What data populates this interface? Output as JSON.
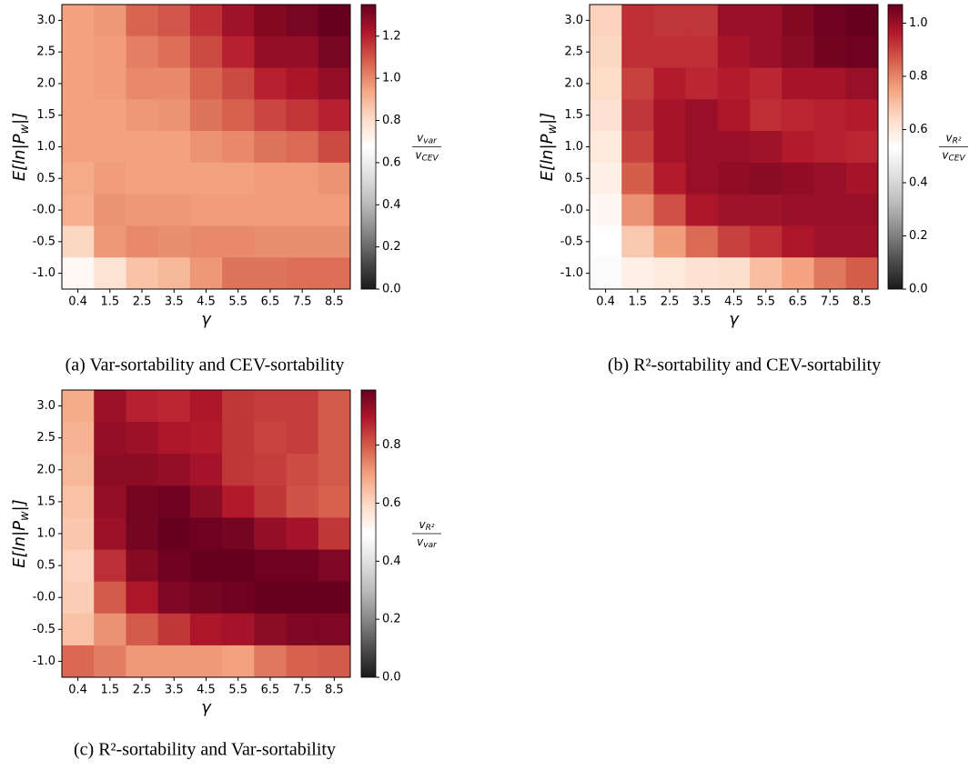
{
  "chart_data": [
    {
      "type": "heatmap",
      "caption": "(a) Var-sortability and CEV-sortability",
      "x_label": "γ",
      "y_label": {
        "main": "E[ln|P",
        "sub": "w",
        "tail": "|]"
      },
      "x_categories": [
        "0.4",
        "1.5",
        "2.5",
        "3.5",
        "4.5",
        "5.5",
        "6.5",
        "7.5",
        "8.5"
      ],
      "y_categories": [
        "3.0",
        "2.5",
        "2.0",
        "1.5",
        "1.0",
        "0.5",
        "-0.0",
        "-0.5",
        "-1.0"
      ],
      "values": [
        [
          0.95,
          0.97,
          1.07,
          1.1,
          1.17,
          1.25,
          1.3,
          1.32,
          1.35
        ],
        [
          0.95,
          0.96,
          1.02,
          1.05,
          1.12,
          1.2,
          1.27,
          1.27,
          1.32
        ],
        [
          0.95,
          0.96,
          1.0,
          1.0,
          1.07,
          1.12,
          1.2,
          1.23,
          1.27
        ],
        [
          0.95,
          0.95,
          0.97,
          0.98,
          1.04,
          1.08,
          1.13,
          1.16,
          1.2
        ],
        [
          0.95,
          0.95,
          0.95,
          0.95,
          0.98,
          1.0,
          1.04,
          1.06,
          1.12
        ],
        [
          0.93,
          0.96,
          0.95,
          0.95,
          0.95,
          0.95,
          0.96,
          0.96,
          0.98
        ],
        [
          0.92,
          0.98,
          0.97,
          0.97,
          0.96,
          0.96,
          0.96,
          0.96,
          0.96
        ],
        [
          0.82,
          0.97,
          1.0,
          0.99,
          1.0,
          1.0,
          0.99,
          0.99,
          0.99
        ],
        [
          0.7,
          0.78,
          0.87,
          0.9,
          0.97,
          1.04,
          1.04,
          1.05,
          1.05
        ]
      ],
      "colormap": "RdGy_r",
      "clim": [
        0,
        1.35
      ],
      "cticks": [
        {
          "value": 0,
          "label": "0.0"
        },
        0.2,
        0.4,
        0.6,
        0.8,
        {
          "value": 1,
          "label": "1.0"
        },
        1.2
      ],
      "colorbar_label": {
        "num": "v",
        "num_sub": "var",
        "den": "v",
        "den_sub": "CEV"
      }
    },
    {
      "type": "heatmap",
      "caption": "(b) R²-sortability and CEV-sortability",
      "x_label": "γ",
      "y_label": {
        "main": "E[ln|P",
        "sub": "w",
        "tail": "|]"
      },
      "x_categories": [
        "0.4",
        "1.5",
        "2.5",
        "3.5",
        "4.5",
        "5.5",
        "6.5",
        "7.5",
        "8.5"
      ],
      "y_categories": [
        "3.0",
        "2.5",
        "2.0",
        "1.5",
        "1.0",
        "0.5",
        "-0.0",
        "-0.5",
        "-1.0"
      ],
      "values": [
        [
          0.66,
          0.93,
          0.92,
          0.92,
          1.0,
          1.0,
          1.03,
          1.06,
          1.07
        ],
        [
          0.65,
          0.93,
          0.93,
          0.93,
          0.98,
          1.0,
          1.02,
          1.05,
          1.06
        ],
        [
          0.64,
          0.9,
          0.96,
          0.94,
          0.96,
          0.94,
          0.98,
          0.98,
          1.0
        ],
        [
          0.62,
          0.92,
          0.98,
          1.0,
          0.97,
          0.93,
          0.94,
          0.95,
          0.96
        ],
        [
          0.6,
          0.9,
          0.98,
          1.0,
          1.0,
          0.99,
          0.96,
          0.95,
          0.94
        ],
        [
          0.58,
          0.86,
          0.96,
          1.0,
          1.01,
          1.02,
          1.01,
          1.0,
          0.98
        ],
        [
          0.56,
          0.78,
          0.88,
          0.97,
          0.99,
          0.99,
          1.0,
          1.0,
          1.0
        ],
        [
          0.53,
          0.68,
          0.76,
          0.84,
          0.9,
          0.93,
          0.97,
          0.99,
          0.99
        ],
        [
          0.52,
          0.58,
          0.6,
          0.62,
          0.63,
          0.7,
          0.75,
          0.82,
          0.86
        ]
      ],
      "colormap": "RdGy_r",
      "clim": [
        0,
        1.07
      ],
      "cticks": [
        {
          "value": 0,
          "label": "0.0"
        },
        0.2,
        0.4,
        0.6,
        0.8,
        {
          "value": 1,
          "label": "1.0"
        }
      ],
      "colorbar_label": {
        "num": "v",
        "num_sub": "R²",
        "den": "v",
        "den_sub": "CEV"
      }
    },
    {
      "type": "heatmap",
      "caption": "(c) R²-sortability and Var-sortability",
      "x_label": "γ",
      "y_label": {
        "main": "E[ln|P",
        "sub": "w",
        "tail": "|]"
      },
      "x_categories": [
        "0.4",
        "1.5",
        "2.5",
        "3.5",
        "4.5",
        "5.5",
        "6.5",
        "7.5",
        "8.5"
      ],
      "y_categories": [
        "3.0",
        "2.5",
        "2.0",
        "1.5",
        "1.0",
        "0.5",
        "-0.0",
        "-0.5",
        "-1.0"
      ],
      "values": [
        [
          0.68,
          0.92,
          0.88,
          0.87,
          0.9,
          0.85,
          0.84,
          0.84,
          0.8
        ],
        [
          0.67,
          0.93,
          0.92,
          0.9,
          0.89,
          0.85,
          0.83,
          0.84,
          0.8
        ],
        [
          0.66,
          0.94,
          0.94,
          0.93,
          0.91,
          0.85,
          0.84,
          0.82,
          0.8
        ],
        [
          0.64,
          0.93,
          0.97,
          0.98,
          0.94,
          0.89,
          0.85,
          0.81,
          0.79
        ],
        [
          0.63,
          0.92,
          0.97,
          0.99,
          0.98,
          0.97,
          0.93,
          0.91,
          0.85
        ],
        [
          0.61,
          0.86,
          0.95,
          0.98,
          0.99,
          0.99,
          0.98,
          0.98,
          0.96
        ],
        [
          0.62,
          0.8,
          0.9,
          0.96,
          0.97,
          0.98,
          0.99,
          0.99,
          0.99
        ],
        [
          0.64,
          0.72,
          0.8,
          0.85,
          0.9,
          0.91,
          0.94,
          0.96,
          0.96
        ],
        [
          0.78,
          0.75,
          0.71,
          0.71,
          0.71,
          0.7,
          0.76,
          0.79,
          0.8
        ]
      ],
      "colormap": "RdGy_r",
      "clim": [
        0,
        0.99
      ],
      "cticks": [
        {
          "value": 0,
          "label": "0.0"
        },
        0.2,
        0.4,
        0.6,
        0.8
      ],
      "colorbar_label": {
        "num": "v",
        "num_sub": "R²",
        "den": "v",
        "den_sub": "var"
      }
    }
  ]
}
